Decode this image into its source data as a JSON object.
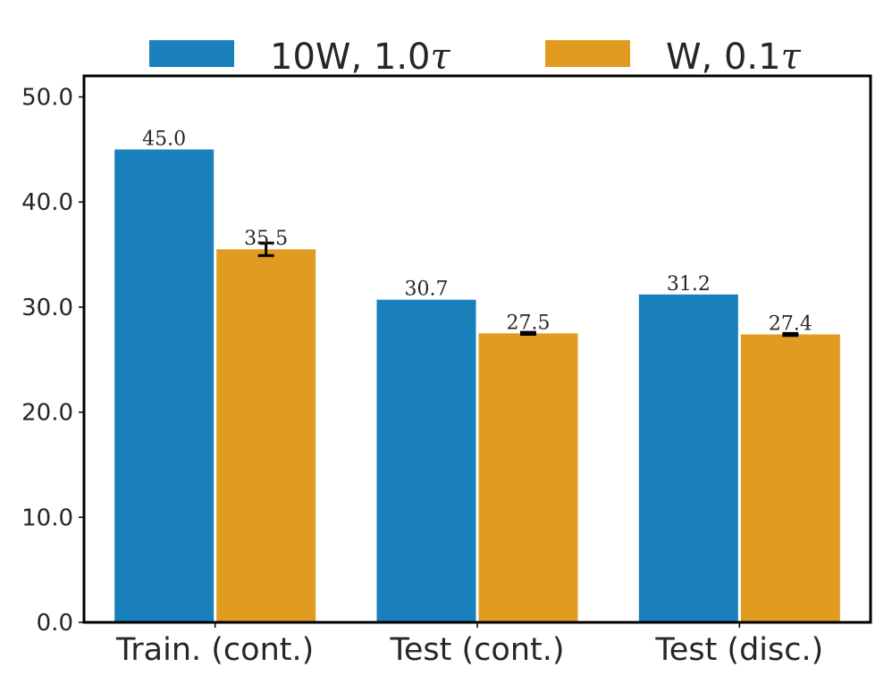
{
  "chart_data": {
    "type": "bar",
    "categories": [
      "Train. (cont.)",
      "Test (cont.)",
      "Test (disc.)"
    ],
    "series": [
      {
        "name": "10W, 1.0τ",
        "name_prefix": "10W, 1.0",
        "name_symbol": "τ",
        "color": "#1a80bb",
        "values": [
          45.0,
          30.7,
          31.2
        ],
        "labels": [
          "45.0",
          "30.7",
          "31.2"
        ],
        "errors": [
          0,
          0,
          0
        ]
      },
      {
        "name": "W, 0.1τ",
        "name_prefix": "W, 0.1",
        "name_symbol": "τ",
        "color": "#e09b20",
        "values": [
          35.5,
          27.5,
          27.4
        ],
        "labels": [
          "35.5",
          "27.5",
          "27.4"
        ],
        "errors": [
          0.6,
          0.1,
          0.1
        ]
      }
    ],
    "title": "",
    "xlabel": "",
    "ylabel": "",
    "ylim": [
      0,
      52
    ],
    "yticks": [
      0,
      10,
      20,
      30,
      40,
      50
    ],
    "ytick_labels": [
      "0.0",
      "10.0",
      "20.0",
      "30.0",
      "40.0",
      "50.0"
    ],
    "grid": false,
    "legend_position": "top-center, above plot"
  }
}
